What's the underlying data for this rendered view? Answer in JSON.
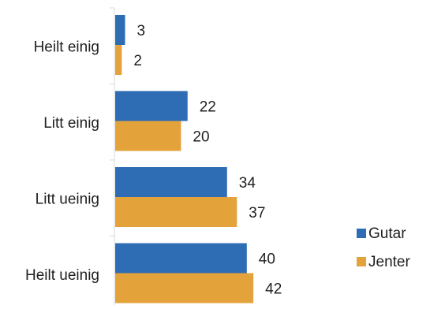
{
  "colors": {
    "gutar": "#2e6db4",
    "jenter": "#e3a23a",
    "axis": "#d9d9d9",
    "text": "#1f1f1f"
  },
  "chart_data": {
    "type": "bar",
    "orientation": "horizontal",
    "categories": [
      "Heilt einig",
      "Litt einig",
      "Litt ueinig",
      "Heilt ueinig"
    ],
    "series": [
      {
        "name": "Gutar",
        "values": [
          3,
          22,
          34,
          40
        ]
      },
      {
        "name": "Jenter",
        "values": [
          2,
          20,
          37,
          42
        ]
      }
    ],
    "title": "",
    "xlabel": "",
    "ylabel": "",
    "xlim": [
      0,
      72
    ],
    "grid": false,
    "legend_position": "right"
  }
}
